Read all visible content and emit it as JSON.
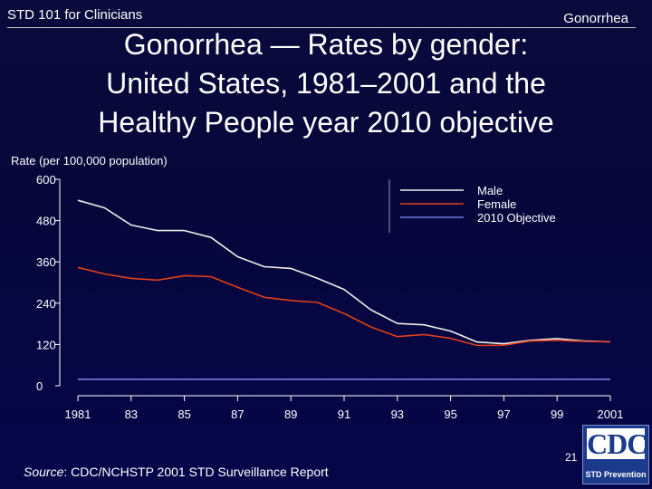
{
  "header": {
    "course": "STD 101 for Clinicians",
    "topic": "Gonorrhea"
  },
  "title": {
    "line1": "Gonorrhea — Rates by gender:",
    "line2": "United States, 1981–2001 and the",
    "line3": "Healthy People year 2010 objective"
  },
  "footer": {
    "source_label": "Source",
    "source_text": ": CDC/NCHSTP 2001 STD Surveillance Report",
    "page_number": "21",
    "logo_text": "CDC",
    "logo_subtext": "STD Prevention"
  },
  "colors": {
    "background": "#06063a",
    "male": "#f0f0e8",
    "female": "#e0401c",
    "objective": "#6f7fe0",
    "axis": "#ffffff"
  },
  "chart_data": {
    "type": "line",
    "title": "",
    "ylabel": "Rate (per 100,000 population)",
    "xlabel": "",
    "ylim": [
      0,
      600
    ],
    "xlim": [
      1981,
      2001
    ],
    "yticks": [
      "600",
      "480",
      "360",
      "240",
      "120",
      "0"
    ],
    "xticks": [
      "1981",
      "83",
      "85",
      "87",
      "89",
      "91",
      "93",
      "95",
      "97",
      "99",
      "2001"
    ],
    "x": [
      1981,
      1982,
      1983,
      1984,
      1985,
      1986,
      1987,
      1988,
      1989,
      1990,
      1991,
      1992,
      1993,
      1994,
      1995,
      1996,
      1997,
      1998,
      1999,
      2000,
      2001
    ],
    "series": [
      {
        "name": "Male",
        "color": "#f0f0e8",
        "values": [
          539,
          517,
          467,
          451,
          451,
          431,
          375,
          346,
          341,
          312,
          280,
          221,
          181,
          177,
          159,
          127,
          122,
          132,
          137,
          130,
          128
        ]
      },
      {
        "name": "Female",
        "color": "#e0401c",
        "values": [
          344,
          325,
          312,
          307,
          320,
          317,
          286,
          257,
          248,
          242,
          210,
          171,
          143,
          149,
          138,
          117,
          118,
          130,
          132,
          129,
          128
        ]
      },
      {
        "name": "2010 Objective",
        "color": "#6f7fe0",
        "values": [
          19,
          19,
          19,
          19,
          19,
          19,
          19,
          19,
          19,
          19,
          19,
          19,
          19,
          19,
          19,
          19,
          19,
          19,
          19,
          19,
          19
        ]
      }
    ],
    "legend": "top-right",
    "grid": false
  }
}
